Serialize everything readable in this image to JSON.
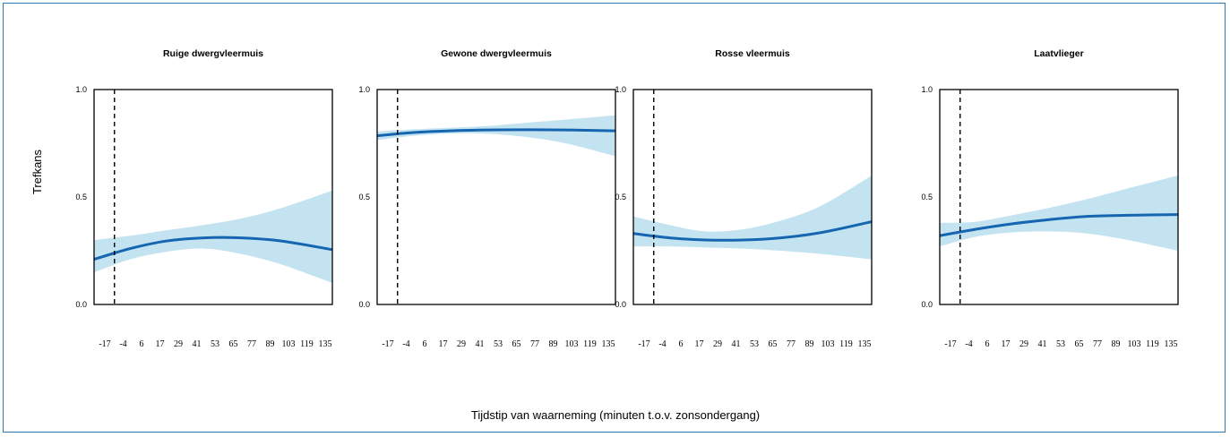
{
  "figure": {
    "ylabel": "Trefkans",
    "xlabel": "Tijdstip van waarneming (minuten t.o.v. zonsondergang)"
  },
  "colors": {
    "line": "#1565b0",
    "band": "#c3e3f1",
    "frame": "#2f77b1"
  },
  "chart_data": [
    {
      "type": "line",
      "title": "Ruige dwergvleermuis",
      "x_ticks": [
        -17,
        -4,
        6,
        17,
        29,
        41,
        53,
        65,
        77,
        89,
        103,
        119,
        135
      ],
      "y_ticks": [
        "0.0",
        "0.5",
        "1.0"
      ],
      "xlim": [
        -17,
        135
      ],
      "ylim": [
        0,
        1
      ],
      "vline_x": -4,
      "series": [
        {
          "x": [
            -17,
            6,
            29,
            53,
            77,
            103,
            135
          ],
          "y": [
            0.21,
            0.26,
            0.295,
            0.31,
            0.31,
            0.295,
            0.255
          ],
          "lower": [
            0.15,
            0.21,
            0.245,
            0.26,
            0.235,
            0.185,
            0.1
          ],
          "upper": [
            0.3,
            0.32,
            0.345,
            0.37,
            0.4,
            0.45,
            0.53
          ]
        }
      ]
    },
    {
      "type": "line",
      "title": "Gewone dwergvleermuis",
      "x_ticks": [
        -17,
        -4,
        6,
        17,
        29,
        41,
        53,
        65,
        77,
        89,
        103,
        119,
        135
      ],
      "y_ticks": [
        "0.0",
        "0.5",
        "1.0"
      ],
      "xlim": [
        -17,
        135
      ],
      "ylim": [
        0,
        1
      ],
      "vline_x": -4,
      "series": [
        {
          "x": [
            -17,
            6,
            29,
            53,
            77,
            103,
            135
          ],
          "y": [
            0.785,
            0.8,
            0.808,
            0.812,
            0.813,
            0.812,
            0.808
          ],
          "lower": [
            0.765,
            0.785,
            0.795,
            0.795,
            0.78,
            0.75,
            0.69
          ],
          "upper": [
            0.805,
            0.815,
            0.822,
            0.83,
            0.845,
            0.86,
            0.88
          ]
        }
      ]
    },
    {
      "type": "line",
      "title": "Rosse vleermuis",
      "x_ticks": [
        -17,
        -4,
        6,
        17,
        29,
        41,
        53,
        65,
        77,
        89,
        103,
        119,
        135
      ],
      "y_ticks": [
        "0.0",
        "0.5",
        "1.0"
      ],
      "xlim": [
        -17,
        135
      ],
      "ylim": [
        0,
        1
      ],
      "vline_x": -4,
      "series": [
        {
          "x": [
            -17,
            6,
            29,
            53,
            77,
            103,
            135
          ],
          "y": [
            0.33,
            0.31,
            0.3,
            0.3,
            0.31,
            0.335,
            0.385
          ],
          "lower": [
            0.27,
            0.27,
            0.265,
            0.26,
            0.25,
            0.235,
            0.21
          ],
          "upper": [
            0.41,
            0.37,
            0.34,
            0.35,
            0.39,
            0.46,
            0.6
          ]
        }
      ]
    },
    {
      "type": "line",
      "title": "Laatvlieger",
      "x_ticks": [
        -17,
        -4,
        6,
        17,
        29,
        41,
        53,
        65,
        77,
        89,
        103,
        119,
        135
      ],
      "y_ticks": [
        "0.0",
        "0.5",
        "1.0"
      ],
      "xlim": [
        -17,
        135
      ],
      "ylim": [
        0,
        1
      ],
      "vline_x": -4,
      "series": [
        {
          "x": [
            -17,
            6,
            29,
            53,
            77,
            103,
            135
          ],
          "y": [
            0.32,
            0.35,
            0.375,
            0.395,
            0.41,
            0.415,
            0.418
          ],
          "lower": [
            0.27,
            0.315,
            0.335,
            0.34,
            0.33,
            0.3,
            0.25
          ],
          "upper": [
            0.38,
            0.385,
            0.415,
            0.45,
            0.49,
            0.54,
            0.6
          ]
        }
      ]
    }
  ]
}
